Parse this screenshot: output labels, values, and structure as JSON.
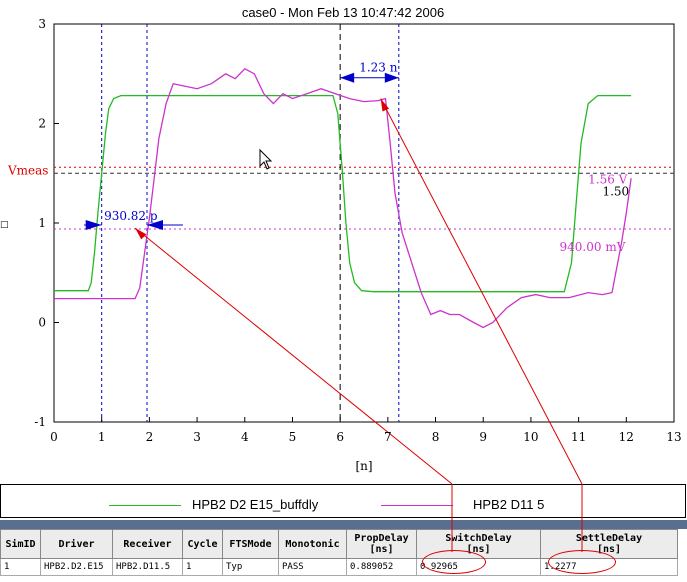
{
  "window_title": "case0 - Mon Feb 13 10:47:42 2006",
  "colors": {
    "green": "#22bb22",
    "magenta": "#cc33cc",
    "blue": "#0000cc",
    "red": "#dd0000",
    "axis": "#000000"
  },
  "chart_data": {
    "type": "line",
    "title": "case0 - Mon Feb 13 10:47:42 2006",
    "xlabel": "[n]",
    "ylabel": "",
    "xlim": [
      0,
      13
    ],
    "ylim": [
      -1,
      3
    ],
    "x_ticks": [
      "0",
      "1",
      "2",
      "3",
      "4",
      "5",
      "6",
      "7",
      "8",
      "9",
      "10",
      "11",
      "12",
      "13"
    ],
    "y_ticks": [
      "-1",
      "0",
      "1",
      "2",
      "3"
    ],
    "grid": false,
    "series": [
      {
        "name": "HPB2 D2 E15_buffdly",
        "color": "#22bb22",
        "x": [
          0,
          0.72,
          0.78,
          0.85,
          0.92,
          1.0,
          1.08,
          1.15,
          1.25,
          1.4,
          1.6,
          5.85,
          5.95,
          6.05,
          6.12,
          6.2,
          6.3,
          6.45,
          6.7,
          10.7,
          10.85,
          10.95,
          11.05,
          11.2,
          11.4,
          11.8,
          12.1
        ],
        "y": [
          0.32,
          0.32,
          0.4,
          0.7,
          1.1,
          1.5,
          1.9,
          2.15,
          2.25,
          2.28,
          2.28,
          2.28,
          2.1,
          1.5,
          1.0,
          0.6,
          0.4,
          0.32,
          0.31,
          0.31,
          0.6,
          1.2,
          1.8,
          2.2,
          2.28,
          2.28,
          2.28
        ]
      },
      {
        "name": "HPB2 D11 5",
        "color": "#cc33cc",
        "x": [
          0,
          1.7,
          1.8,
          1.9,
          2.0,
          2.1,
          2.2,
          2.35,
          2.5,
          2.7,
          3.0,
          3.3,
          3.6,
          3.8,
          4.0,
          4.2,
          4.4,
          4.6,
          4.8,
          5.0,
          5.3,
          5.6,
          5.9,
          6.2,
          6.5,
          6.8,
          6.95,
          7.05,
          7.15,
          7.3,
          7.5,
          7.7,
          7.9,
          8.1,
          8.3,
          8.5,
          8.8,
          9.0,
          9.2,
          9.5,
          9.8,
          10.1,
          10.4,
          10.8,
          11.2,
          11.5,
          11.7,
          11.9,
          12.0,
          12.1
        ],
        "y": [
          0.24,
          0.24,
          0.35,
          0.7,
          1.05,
          1.45,
          1.85,
          2.2,
          2.4,
          2.38,
          2.35,
          2.4,
          2.5,
          2.45,
          2.55,
          2.5,
          2.3,
          2.2,
          2.3,
          2.25,
          2.3,
          2.35,
          2.3,
          2.25,
          2.22,
          2.23,
          2.25,
          1.8,
          1.3,
          0.9,
          0.6,
          0.3,
          0.08,
          0.12,
          0.08,
          0.08,
          0.0,
          -0.05,
          0.0,
          0.15,
          0.25,
          0.28,
          0.25,
          0.25,
          0.3,
          0.28,
          0.3,
          0.8,
          1.1,
          1.45
        ]
      }
    ],
    "reference_lines": {
      "vmeas": {
        "label": "Vmeas",
        "value": 1.5
      },
      "red_upper": 1.56,
      "magenta_lower": 0.94,
      "vertical_markers": [
        1.0,
        1.95,
        6.0,
        7.23
      ]
    },
    "annotations": {
      "delay_left": "930.82 p",
      "delay_right": "1.23 n",
      "level_156": "1.56 V",
      "level_150": "1.50",
      "level_940": "940.00 mV",
      "left_tick": "□"
    }
  },
  "legend": {
    "items": [
      {
        "label": "HPB2 D2 E15_buffdly",
        "color": "#22bb22"
      },
      {
        "label": "HPB2 D11 5",
        "color": "#cc33cc"
      }
    ]
  },
  "table": {
    "headers": [
      {
        "label": "SimID",
        "unit": ""
      },
      {
        "label": "Driver",
        "unit": ""
      },
      {
        "label": "Receiver",
        "unit": ""
      },
      {
        "label": "Cycle",
        "unit": ""
      },
      {
        "label": "FTSMode",
        "unit": ""
      },
      {
        "label": "Monotonic",
        "unit": ""
      },
      {
        "label": "PropDelay",
        "unit": "[ns]"
      },
      {
        "label": "SwitchDelay",
        "unit": "[ns]"
      },
      {
        "label": "SettleDelay",
        "unit": "[ns]"
      }
    ],
    "rows": [
      [
        "1",
        "HPB2.D2.E15",
        "HPB2.D11.5",
        "1",
        "Typ",
        "PASS",
        "0.889052",
        "0.92965",
        "1.2277"
      ]
    ]
  }
}
